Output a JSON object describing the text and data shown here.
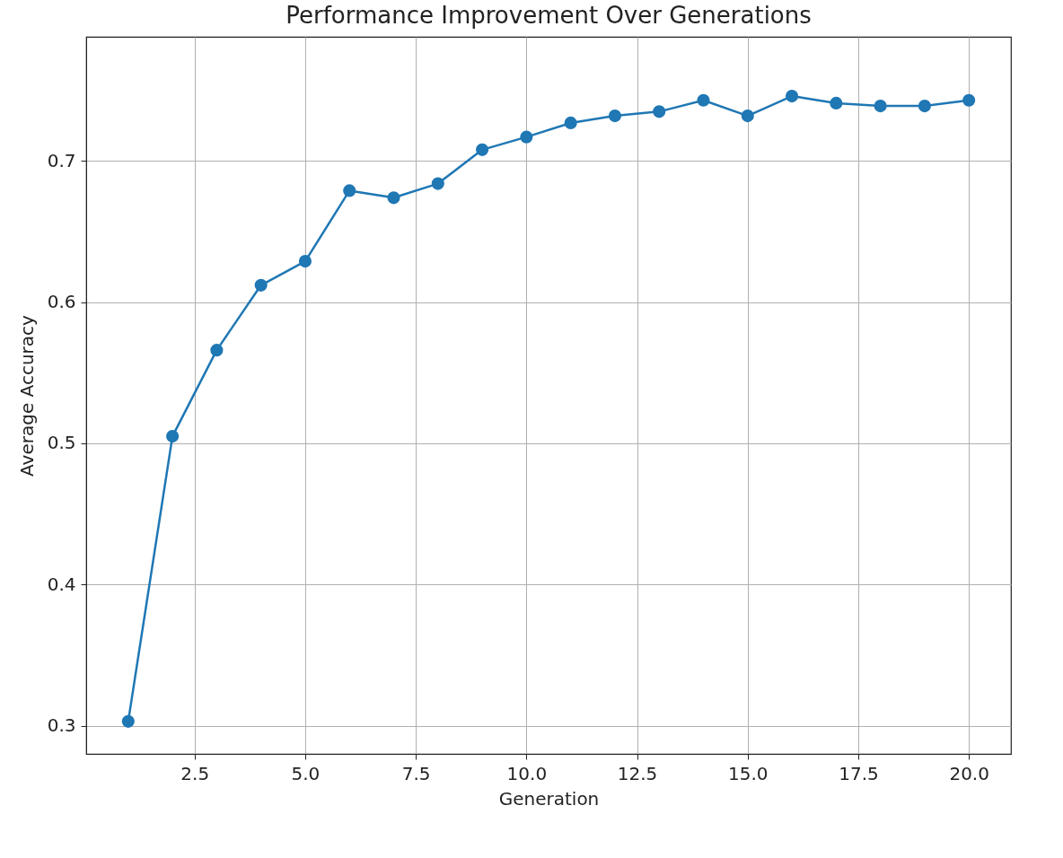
{
  "chart_data": {
    "type": "line",
    "title": "Performance Improvement Over Generations",
    "xlabel": "Generation",
    "ylabel": "Average Accuracy",
    "x": [
      1,
      2,
      3,
      4,
      5,
      6,
      7,
      8,
      9,
      10,
      11,
      12,
      13,
      14,
      15,
      16,
      17,
      18,
      19,
      20
    ],
    "series": [
      {
        "color": "#1f77b4",
        "values": [
          0.303,
          0.505,
          0.566,
          0.612,
          0.629,
          0.679,
          0.674,
          0.684,
          0.708,
          0.717,
          0.727,
          0.732,
          0.735,
          0.743,
          0.732,
          0.746,
          0.741,
          0.739,
          0.739,
          0.743
        ]
      }
    ],
    "xlim": [
      0.05,
      20.95
    ],
    "xticks": [
      {
        "value": 2.5,
        "label": "2.5"
      },
      {
        "value": 5,
        "label": "5.0"
      },
      {
        "value": 7.5,
        "label": "7.5"
      },
      {
        "value": 10,
        "label": "10.0"
      },
      {
        "value": 12.5,
        "label": "12.5"
      },
      {
        "value": 15,
        "label": "15.0"
      },
      {
        "value": 17.5,
        "label": "17.5"
      },
      {
        "value": 20,
        "label": "20.0"
      }
    ],
    "ylim": [
      0.28,
      0.788
    ],
    "yticks": [
      0.3,
      0.4,
      0.5,
      0.6,
      0.7
    ],
    "grid": true,
    "marker": "circle",
    "line_style": "solid"
  }
}
